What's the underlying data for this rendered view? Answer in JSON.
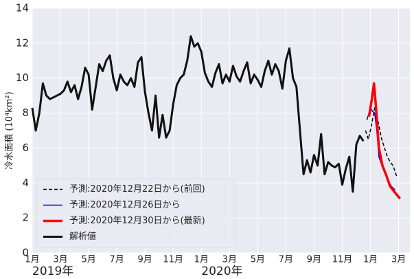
{
  "chart_data": {
    "type": "line",
    "y_label": "冷水面積 (10⁴km²)",
    "xlim": [
      0,
      26.8
    ],
    "ylim": [
      0,
      14
    ],
    "yticks": [
      0,
      2,
      4,
      6,
      8,
      10,
      12,
      14
    ],
    "xticks": [
      {
        "value": 0,
        "label": "1月"
      },
      {
        "value": 2,
        "label": "3月"
      },
      {
        "value": 4,
        "label": "5月"
      },
      {
        "value": 6,
        "label": "7月"
      },
      {
        "value": 8,
        "label": "9月"
      },
      {
        "value": 10,
        "label": "11月"
      },
      {
        "value": 12,
        "label": "1月"
      },
      {
        "value": 14,
        "label": "3月"
      },
      {
        "value": 16,
        "label": "5月"
      },
      {
        "value": 18,
        "label": "7月"
      },
      {
        "value": 20,
        "label": "9月"
      },
      {
        "value": 22,
        "label": "11月"
      },
      {
        "value": 24,
        "label": "1月"
      },
      {
        "value": 26,
        "label": "3月"
      }
    ],
    "year_labels": [
      {
        "value": 0,
        "label": "2019年"
      },
      {
        "value": 12,
        "label": "2020年"
      }
    ],
    "grid": true,
    "legend": "lower left",
    "series": [
      {
        "name": "予測:2020年12月22日から(前回)",
        "color": "#000000",
        "linestyle": "dashed",
        "linewidth": 1.5,
        "x": [
          23.65,
          23.85,
          24.05,
          24.3,
          24.55,
          24.8,
          25.0,
          25.2,
          25.4,
          25.6,
          25.9
        ],
        "values": [
          7.0,
          6.5,
          7.2,
          8.3,
          7.5,
          6.5,
          6.0,
          5.5,
          5.2,
          5.0,
          4.3
        ]
      },
      {
        "name": "予測:2020年12月26日から",
        "color": "#0000cc",
        "linestyle": "solid",
        "linewidth": 1.5,
        "x": [
          23.75,
          24.0,
          24.15,
          24.3,
          24.45,
          24.6,
          24.9,
          25.2,
          25.5,
          25.75
        ],
        "values": [
          7.6,
          8.3,
          8.1,
          8.0,
          7.0,
          5.5,
          4.8,
          4.2,
          3.8,
          3.6
        ]
      },
      {
        "name": "予測:2020年12月30日から(最新)",
        "color": "#ff0000",
        "linestyle": "solid",
        "linewidth": 3.5,
        "x": [
          23.9,
          24.1,
          24.25,
          24.4,
          24.6,
          24.85,
          25.1,
          25.4,
          25.7,
          26.0,
          26.1
        ],
        "values": [
          7.8,
          8.8,
          9.7,
          8.3,
          6.0,
          5.0,
          4.5,
          3.8,
          3.5,
          3.2,
          3.1
        ]
      },
      {
        "name": "解析値",
        "color": "#111111",
        "linestyle": "solid",
        "linewidth": 3,
        "x": [
          0,
          0.25,
          0.5,
          0.75,
          1,
          1.25,
          1.5,
          1.75,
          2,
          2.25,
          2.5,
          2.75,
          3,
          3.25,
          3.5,
          3.75,
          4,
          4.25,
          4.5,
          4.75,
          5,
          5.25,
          5.5,
          5.75,
          6,
          6.25,
          6.5,
          6.75,
          7,
          7.25,
          7.5,
          7.75,
          8,
          8.25,
          8.5,
          8.75,
          9,
          9.25,
          9.5,
          9.75,
          10,
          10.25,
          10.5,
          10.75,
          11,
          11.25,
          11.5,
          11.75,
          12,
          12.25,
          12.5,
          12.75,
          13,
          13.25,
          13.5,
          13.75,
          14,
          14.25,
          14.5,
          14.75,
          15,
          15.25,
          15.5,
          15.75,
          16,
          16.25,
          16.5,
          16.75,
          17,
          17.25,
          17.5,
          17.75,
          18,
          18.25,
          18.5,
          18.75,
          19,
          19.25,
          19.5,
          19.75,
          20,
          20.25,
          20.5,
          20.75,
          21,
          21.25,
          21.5,
          21.75,
          22,
          22.25,
          22.5,
          22.75,
          23,
          23.25,
          23.5
        ],
        "values": [
          8.3,
          7.0,
          8.0,
          9.7,
          9.0,
          8.8,
          8.9,
          9.0,
          9.1,
          9.3,
          9.8,
          9.2,
          9.6,
          8.8,
          9.5,
          10.6,
          10.2,
          8.2,
          9.5,
          10.8,
          10.4,
          11.0,
          11.3,
          10.0,
          9.3,
          10.2,
          9.8,
          9.6,
          10.0,
          9.5,
          10.9,
          11.2,
          9.2,
          8.0,
          7.0,
          9.0,
          6.6,
          7.9,
          6.6,
          7.0,
          8.5,
          9.6,
          10.0,
          10.2,
          11.0,
          12.4,
          11.8,
          12.0,
          11.5,
          10.3,
          9.8,
          9.5,
          10.3,
          10.8,
          9.7,
          10.2,
          9.8,
          10.7,
          10.1,
          9.8,
          10.4,
          10.9,
          9.7,
          10.2,
          9.9,
          9.5,
          10.4,
          11.0,
          10.2,
          10.8,
          10.4,
          9.4,
          11.0,
          11.7,
          10.0,
          9.5,
          7.0,
          4.5,
          5.3,
          4.6,
          5.6,
          5.0,
          6.8,
          4.5,
          5.2,
          5.0,
          4.9,
          5.1,
          3.9,
          4.8,
          5.5,
          3.5,
          6.2,
          6.7,
          6.4
        ]
      }
    ]
  }
}
